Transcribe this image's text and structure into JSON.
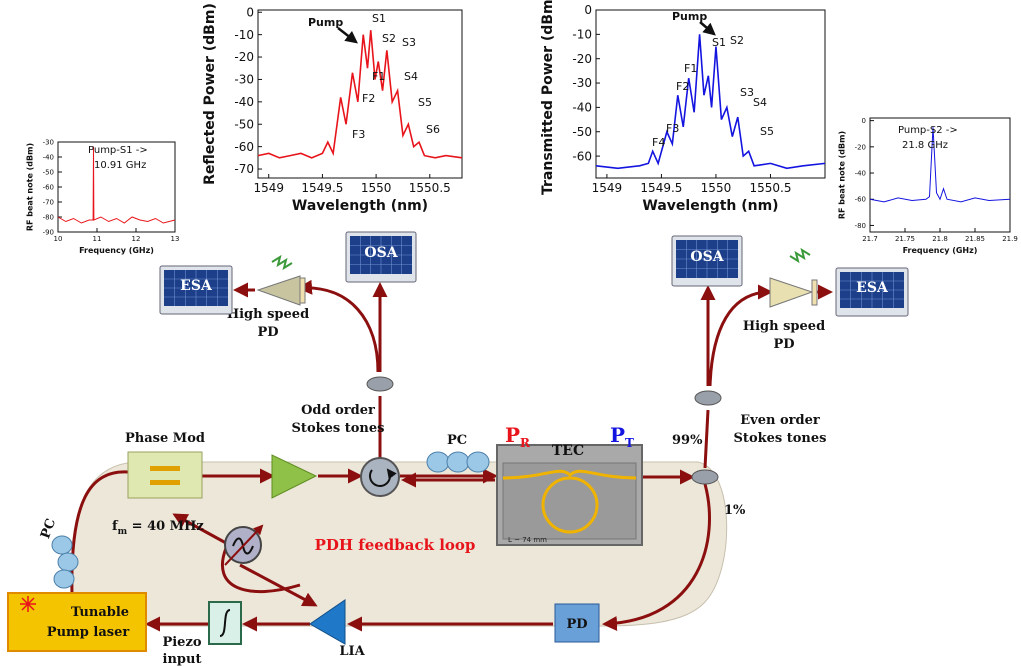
{
  "chart_data": [
    {
      "type": "line",
      "ylabel": "RF beat note (dBm)",
      "xlabel": "Frequency (GHz)",
      "annotations": [
        "Pump-S1 ->",
        "10.91 GHz"
      ],
      "xlim": [
        10,
        13
      ],
      "xticks": [
        10,
        11,
        12,
        13
      ],
      "ylim": [
        -90,
        -30
      ],
      "yticks": [
        -30,
        -40,
        -50,
        -60,
        -70,
        -80,
        -90
      ],
      "series": [
        {
          "color": "#e8141b",
          "x": [
            10,
            10.2,
            10.4,
            10.6,
            10.8,
            10.9,
            10.91,
            10.92,
            11.1,
            11.3,
            11.5,
            11.7,
            11.9,
            12.1,
            12.3,
            12.5,
            12.7,
            13
          ],
          "values": [
            -80,
            -83,
            -81,
            -84,
            -82,
            -82,
            -33,
            -82,
            -80,
            -83,
            -81,
            -84,
            -80,
            -82,
            -83,
            -81,
            -84,
            -82
          ]
        }
      ]
    },
    {
      "type": "line",
      "ylabel": "Reflected Power (dBm)",
      "xlabel": "Wavelength (nm)",
      "annotations": [
        "Pump",
        "S1",
        "S2",
        "S3",
        "S4",
        "S5",
        "S6",
        "F1",
        "F2",
        "F3"
      ],
      "xlim": [
        1548.9,
        1550.8
      ],
      "xticks": [
        1549,
        1549.5,
        1550,
        1550.5
      ],
      "ylim": [
        -74,
        1
      ],
      "yticks": [
        0,
        -10,
        -20,
        -30,
        -40,
        -50,
        -60,
        -70
      ],
      "series": [
        {
          "color": "#e8141b",
          "x": [
            1548.9,
            1549.0,
            1549.1,
            1549.2,
            1549.3,
            1549.4,
            1549.5,
            1549.55,
            1549.6,
            1549.67,
            1549.72,
            1549.78,
            1549.83,
            1549.88,
            1549.92,
            1549.95,
            1549.99,
            1550.02,
            1550.06,
            1550.1,
            1550.15,
            1550.2,
            1550.25,
            1550.3,
            1550.35,
            1550.4,
            1550.45,
            1550.55,
            1550.65,
            1550.8
          ],
          "values": [
            -64,
            -63,
            -65,
            -64,
            -63,
            -65,
            -63,
            -58,
            -63,
            -38,
            -50,
            -27,
            -40,
            -10,
            -25,
            -8,
            -30,
            -22,
            -35,
            -17,
            -40,
            -35,
            -55,
            -50,
            -60,
            -58,
            -64,
            -65,
            -64,
            -65
          ]
        }
      ]
    },
    {
      "type": "line",
      "ylabel": "Transmitted Power (dBm)",
      "xlabel": "Wavelength (nm)",
      "annotations": [
        "Pump",
        "S1",
        "S2",
        "S3",
        "S4",
        "S5",
        "F1",
        "F2",
        "F3",
        "F4"
      ],
      "xlim": [
        1548.9,
        1551
      ],
      "xticks": [
        1549,
        1549.5,
        1550,
        1550.5
      ],
      "ylim": [
        -69,
        0
      ],
      "yticks": [
        0,
        -10,
        -20,
        -30,
        -40,
        -50,
        -60
      ],
      "series": [
        {
          "color": "#1414e0",
          "x": [
            1548.9,
            1549.1,
            1549.3,
            1549.38,
            1549.42,
            1549.47,
            1549.55,
            1549.6,
            1549.65,
            1549.7,
            1549.75,
            1549.8,
            1549.85,
            1549.89,
            1549.93,
            1549.96,
            1550.0,
            1550.05,
            1550.1,
            1550.15,
            1550.2,
            1550.25,
            1550.3,
            1550.35,
            1550.5,
            1550.65,
            1550.8,
            1551
          ],
          "values": [
            -64,
            -65,
            -64,
            -63,
            -58,
            -63,
            -50,
            -55,
            -35,
            -48,
            -28,
            -42,
            -10,
            -35,
            -27,
            -40,
            -15,
            -45,
            -40,
            -52,
            -44,
            -60,
            -58,
            -64,
            -63,
            -65,
            -64,
            -63
          ]
        }
      ]
    },
    {
      "type": "line",
      "ylabel": "RF beat note (dBm)",
      "xlabel": "Frequency (GHz)",
      "annotations": [
        "Pump-S2 ->",
        "21.8 GHz"
      ],
      "xlim": [
        21.7,
        21.9
      ],
      "xticks": [
        21.7,
        21.75,
        21.8,
        21.85,
        21.9
      ],
      "ylim": [
        -85,
        2
      ],
      "yticks": [
        0,
        -20,
        -40,
        -60,
        -80
      ],
      "series": [
        {
          "color": "#1414e0",
          "x": [
            21.7,
            21.72,
            21.74,
            21.76,
            21.78,
            21.785,
            21.79,
            21.795,
            21.8,
            21.805,
            21.81,
            21.83,
            21.85,
            21.87,
            21.9
          ],
          "values": [
            -60,
            -62,
            -59,
            -61,
            -60,
            -58,
            -5,
            -55,
            -60,
            -52,
            -60,
            -62,
            -59,
            -61,
            -60
          ]
        }
      ]
    }
  ],
  "diagram": {
    "esa_left": "ESA",
    "esa_right": "ESA",
    "osa_left": "OSA",
    "osa_right": "OSA",
    "pd_left": [
      "High speed",
      "PD"
    ],
    "pd_right": [
      "High speed",
      "PD"
    ],
    "odd": [
      "Odd order",
      "Stokes tones"
    ],
    "even": [
      "Even order",
      "Stokes tones"
    ],
    "pc_top": "PC",
    "pc_left": "PC",
    "p_r": {
      "main": "P",
      "sub": "R"
    },
    "p_t": {
      "main": "P",
      "sub": "T"
    },
    "tec": "TEC",
    "split_99": "99%",
    "split_1": "1%",
    "phase_mod": "Phase Mod",
    "fm": {
      "main": "f",
      "sub": "m",
      "rest": " = 40 MHz"
    },
    "pdh": "PDH feedback loop",
    "chip_length": "L ~ 74 mm",
    "laser": [
      "Tunable",
      "Pump laser"
    ],
    "piezo": [
      "Piezo",
      "input"
    ],
    "lia": "LIA",
    "pd": "PD"
  }
}
